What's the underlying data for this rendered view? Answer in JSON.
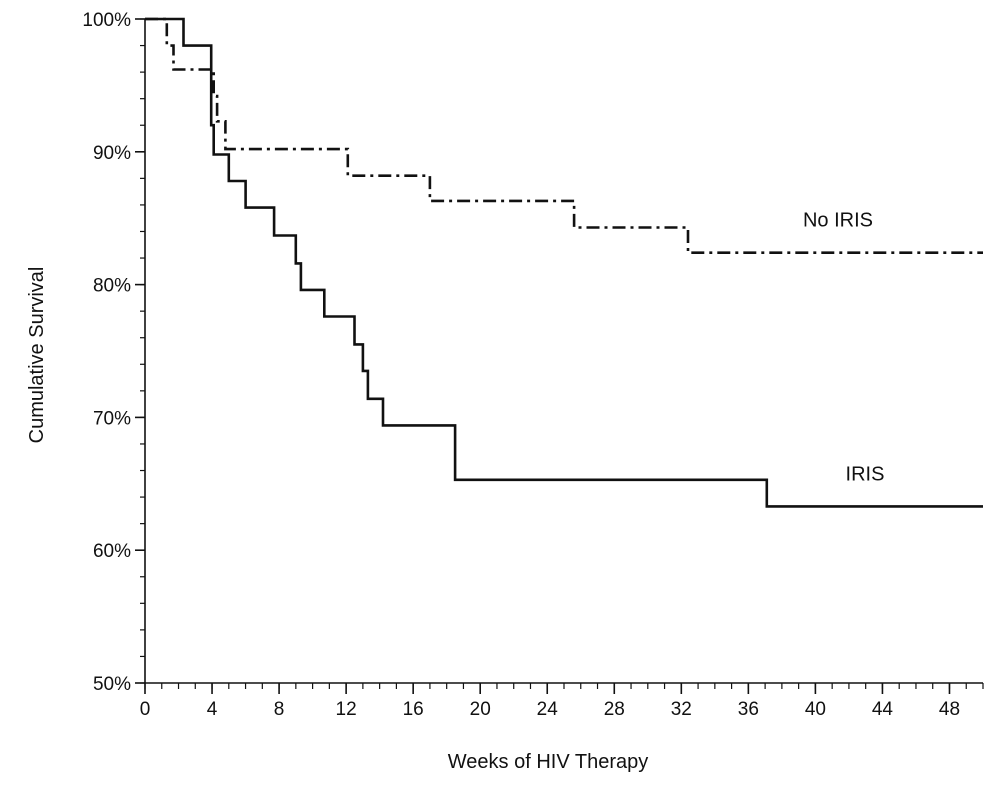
{
  "chart_data": {
    "type": "line",
    "step": true,
    "title": "",
    "xlabel": "Weeks of HIV Therapy",
    "ylabel": "Cumulative Survival",
    "xlim": [
      0,
      50
    ],
    "ylim": [
      50,
      100
    ],
    "x_ticks": [
      0,
      4,
      8,
      12,
      16,
      20,
      24,
      28,
      32,
      36,
      40,
      44,
      48
    ],
    "x_minor_step": 1,
    "y_ticks": [
      {
        "value": 50,
        "label": "50%"
      },
      {
        "value": 60,
        "label": "60%"
      },
      {
        "value": 70,
        "label": "70%"
      },
      {
        "value": 80,
        "label": "80%"
      },
      {
        "value": 90,
        "label": "90%"
      },
      {
        "value": 100,
        "label": "100%"
      }
    ],
    "y_minor_step": 2,
    "grid": false,
    "legend": "none",
    "series": [
      {
        "name": "No IRIS",
        "line_style": "dash-dot",
        "color": "#111111",
        "label_position": "right, above line",
        "x": [
          0,
          1.3,
          1.7,
          4.1,
          4.3,
          4.8,
          12.1,
          17.0,
          25.6,
          32.4,
          50
        ],
        "y": [
          100,
          98.0,
          96.2,
          94.2,
          92.3,
          90.2,
          88.2,
          86.3,
          84.3,
          82.4,
          82.4
        ]
      },
      {
        "name": "IRIS",
        "line_style": "solid",
        "color": "#111111",
        "label_position": "right, above line",
        "x": [
          0,
          2.3,
          3.95,
          4.1,
          5.0,
          6.0,
          7.7,
          9.0,
          9.3,
          10.7,
          12.5,
          13.0,
          13.3,
          14.2,
          18.5,
          37.1,
          50
        ],
        "y": [
          100,
          98.0,
          92.0,
          89.8,
          87.8,
          85.8,
          83.7,
          81.6,
          79.6,
          77.6,
          75.5,
          73.5,
          71.4,
          69.4,
          65.3,
          63.3,
          63.3
        ]
      }
    ]
  }
}
